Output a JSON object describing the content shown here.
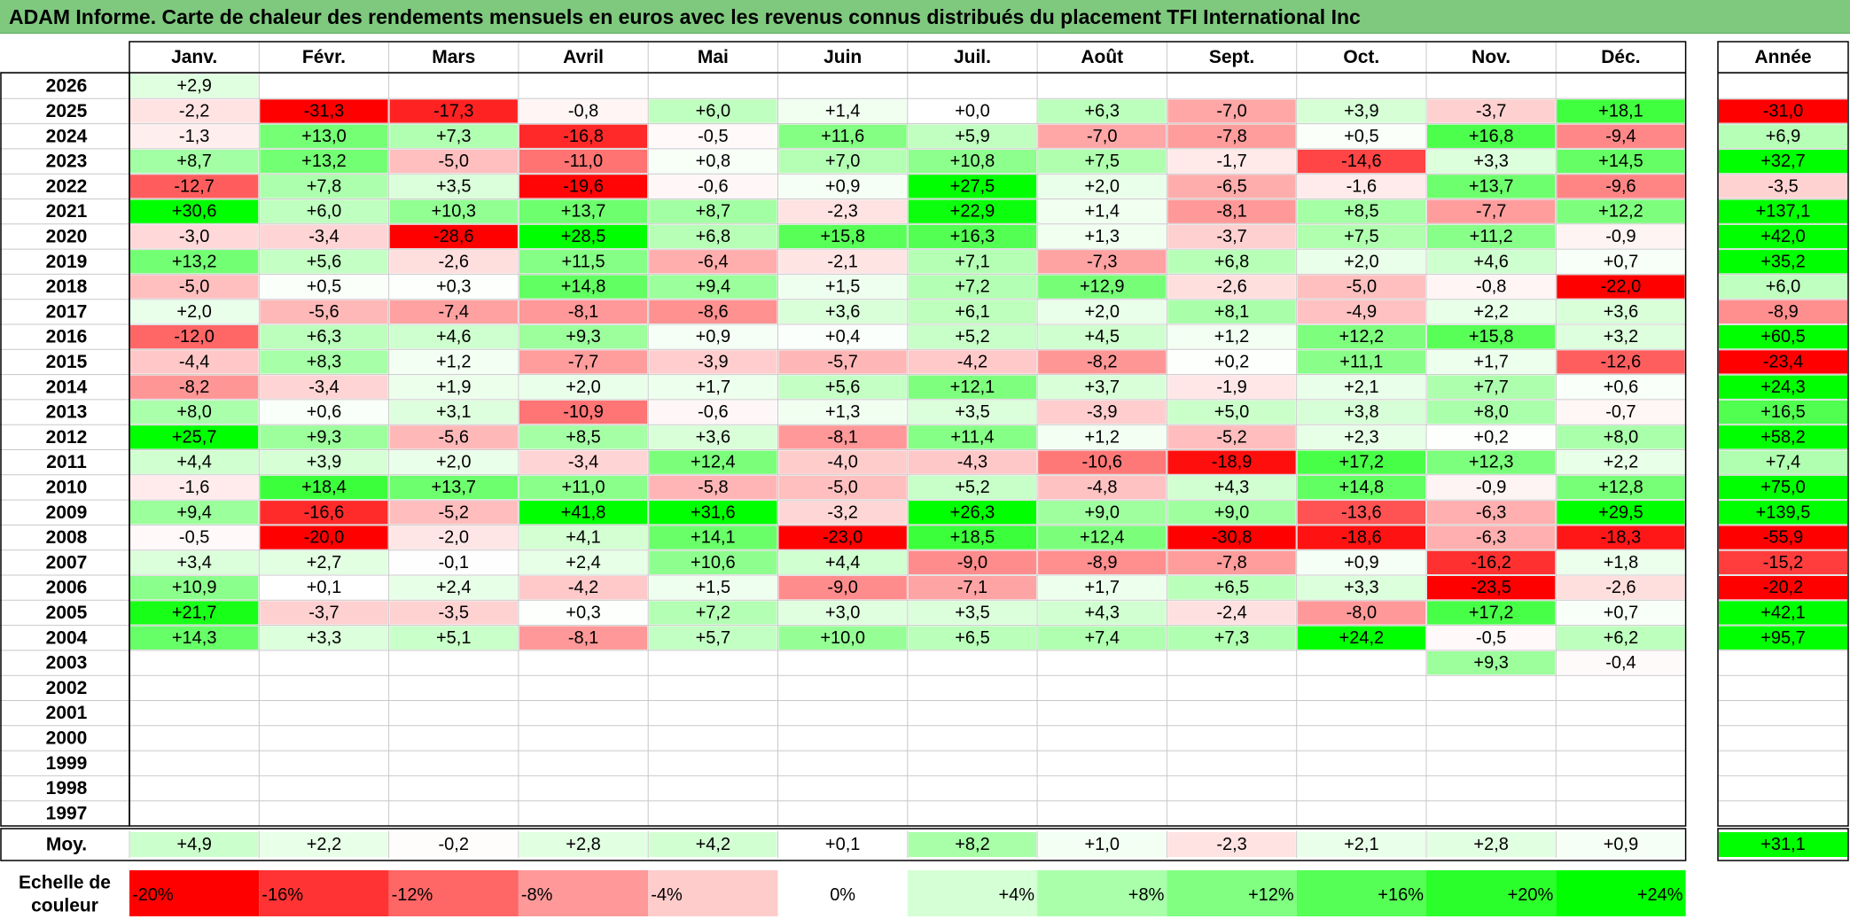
{
  "title": "ADAM Informe. Carte de chaleur des rendements mensuels en euros avec les revenus connus distribués du placement TFI International Inc",
  "chart_data": {
    "type": "heatmap",
    "months": [
      "Janv.",
      "Févr.",
      "Mars",
      "Avril",
      "Mai",
      "Juin",
      "Juil.",
      "Août",
      "Sept.",
      "Oct.",
      "Nov.",
      "Déc."
    ],
    "year_header": "Année",
    "rows": [
      {
        "year": "2026",
        "values": [
          2.9,
          null,
          null,
          null,
          null,
          null,
          null,
          null,
          null,
          null,
          null,
          null
        ],
        "annual": null
      },
      {
        "year": "2025",
        "values": [
          -2.2,
          -31.3,
          -17.3,
          -0.8,
          6.0,
          1.4,
          0.0,
          6.3,
          -7.0,
          3.9,
          -3.7,
          18.1
        ],
        "annual": -31.0
      },
      {
        "year": "2024",
        "values": [
          -1.3,
          13.0,
          7.3,
          -16.8,
          -0.5,
          11.6,
          5.9,
          -7.0,
          -7.8,
          0.5,
          16.8,
          -9.4
        ],
        "annual": 6.9
      },
      {
        "year": "2023",
        "values": [
          8.7,
          13.2,
          -5.0,
          -11.0,
          0.8,
          7.0,
          10.8,
          7.5,
          -1.7,
          -14.6,
          3.3,
          14.5
        ],
        "annual": 32.7
      },
      {
        "year": "2022",
        "values": [
          -12.7,
          7.8,
          3.5,
          -19.6,
          -0.6,
          0.9,
          27.5,
          2.0,
          -6.5,
          -1.6,
          13.7,
          -9.6
        ],
        "annual": -3.5
      },
      {
        "year": "2021",
        "values": [
          30.6,
          6.0,
          10.3,
          13.7,
          8.7,
          -2.3,
          22.9,
          1.4,
          -8.1,
          8.5,
          -7.7,
          12.2
        ],
        "annual": 137.1
      },
      {
        "year": "2020",
        "values": [
          -3.0,
          -3.4,
          -28.6,
          28.5,
          6.8,
          15.8,
          16.3,
          1.3,
          -3.7,
          7.5,
          11.2,
          -0.9
        ],
        "annual": 42.0
      },
      {
        "year": "2019",
        "values": [
          13.2,
          5.6,
          -2.6,
          11.5,
          -6.4,
          -2.1,
          7.1,
          -7.3,
          6.8,
          2.0,
          4.6,
          0.7
        ],
        "annual": 35.2
      },
      {
        "year": "2018",
        "values": [
          -5.0,
          0.5,
          0.3,
          14.8,
          9.4,
          1.5,
          7.2,
          12.9,
          -2.6,
          -5.0,
          -0.8,
          -22.0
        ],
        "annual": 6.0
      },
      {
        "year": "2017",
        "values": [
          2.0,
          -5.6,
          -7.4,
          -8.1,
          -8.6,
          3.6,
          6.1,
          2.0,
          8.1,
          -4.9,
          2.2,
          3.6
        ],
        "annual": -8.9
      },
      {
        "year": "2016",
        "values": [
          -12.0,
          6.3,
          4.6,
          9.3,
          0.9,
          0.4,
          5.2,
          4.5,
          1.2,
          12.2,
          15.8,
          3.2
        ],
        "annual": 60.5
      },
      {
        "year": "2015",
        "values": [
          -4.4,
          8.3,
          1.2,
          -7.7,
          -3.9,
          -5.7,
          -4.2,
          -8.2,
          0.2,
          11.1,
          1.7,
          -12.6
        ],
        "annual": -23.4
      },
      {
        "year": "2014",
        "values": [
          -8.2,
          -3.4,
          1.9,
          2.0,
          1.7,
          5.6,
          12.1,
          3.7,
          -1.9,
          2.1,
          7.7,
          0.6
        ],
        "annual": 24.3
      },
      {
        "year": "2013",
        "values": [
          8.0,
          0.6,
          3.1,
          -10.9,
          -0.6,
          1.3,
          3.5,
          -3.9,
          5.0,
          3.8,
          8.0,
          -0.7
        ],
        "annual": 16.5
      },
      {
        "year": "2012",
        "values": [
          25.7,
          9.3,
          -5.6,
          8.5,
          3.6,
          -8.1,
          11.4,
          1.2,
          -5.2,
          2.3,
          0.2,
          8.0
        ],
        "annual": 58.2
      },
      {
        "year": "2011",
        "values": [
          4.4,
          3.9,
          2.0,
          -3.4,
          12.4,
          -4.0,
          -4.3,
          -10.6,
          -18.9,
          17.2,
          12.3,
          2.2
        ],
        "annual": 7.4
      },
      {
        "year": "2010",
        "values": [
          -1.6,
          18.4,
          13.7,
          11.0,
          -5.8,
          -5.0,
          5.2,
          -4.8,
          4.3,
          14.8,
          -0.9,
          12.8
        ],
        "annual": 75.0
      },
      {
        "year": "2009",
        "values": [
          9.4,
          -16.6,
          -5.2,
          41.8,
          31.6,
          -3.2,
          26.3,
          9.0,
          9.0,
          -13.6,
          -6.3,
          29.5
        ],
        "annual": 139.5
      },
      {
        "year": "2008",
        "values": [
          -0.5,
          -20.0,
          -2.0,
          4.1,
          14.1,
          -23.0,
          18.5,
          12.4,
          -30.8,
          -18.6,
          -6.3,
          -18.3
        ],
        "annual": -55.9
      },
      {
        "year": "2007",
        "values": [
          3.4,
          2.7,
          -0.1,
          2.4,
          10.6,
          4.4,
          -9.0,
          -8.9,
          -7.8,
          0.9,
          -16.2,
          1.8
        ],
        "annual": -15.2
      },
      {
        "year": "2006",
        "values": [
          10.9,
          0.1,
          2.4,
          -4.2,
          1.5,
          -9.0,
          -7.1,
          1.7,
          6.5,
          3.3,
          -23.5,
          -2.6
        ],
        "annual": -20.2
      },
      {
        "year": "2005",
        "values": [
          21.7,
          -3.7,
          -3.5,
          0.3,
          7.2,
          3.0,
          3.5,
          4.3,
          -2.4,
          -8.0,
          17.2,
          0.7
        ],
        "annual": 42.1
      },
      {
        "year": "2004",
        "values": [
          14.3,
          3.3,
          5.1,
          -8.1,
          5.7,
          10.0,
          6.5,
          7.4,
          7.3,
          24.2,
          -0.5,
          6.2
        ],
        "annual": 95.7
      },
      {
        "year": "2003",
        "values": [
          null,
          null,
          null,
          null,
          null,
          null,
          null,
          null,
          null,
          null,
          9.3,
          -0.4
        ],
        "annual": null
      },
      {
        "year": "2002",
        "values": [
          null,
          null,
          null,
          null,
          null,
          null,
          null,
          null,
          null,
          null,
          null,
          null
        ],
        "annual": null
      },
      {
        "year": "2001",
        "values": [
          null,
          null,
          null,
          null,
          null,
          null,
          null,
          null,
          null,
          null,
          null,
          null
        ],
        "annual": null
      },
      {
        "year": "2000",
        "values": [
          null,
          null,
          null,
          null,
          null,
          null,
          null,
          null,
          null,
          null,
          null,
          null
        ],
        "annual": null
      },
      {
        "year": "1999",
        "values": [
          null,
          null,
          null,
          null,
          null,
          null,
          null,
          null,
          null,
          null,
          null,
          null
        ],
        "annual": null
      },
      {
        "year": "1998",
        "values": [
          null,
          null,
          null,
          null,
          null,
          null,
          null,
          null,
          null,
          null,
          null,
          null
        ],
        "annual": null
      },
      {
        "year": "1997",
        "values": [
          null,
          null,
          null,
          null,
          null,
          null,
          null,
          null,
          null,
          null,
          null,
          null
        ],
        "annual": null
      }
    ],
    "average": {
      "label": "Moy.",
      "values": [
        4.9,
        2.2,
        -0.2,
        2.8,
        4.2,
        0.1,
        8.2,
        1.0,
        -2.3,
        2.1,
        2.8,
        0.9
      ],
      "annual": 31.1
    },
    "scale": {
      "label_line1": "Echelle de",
      "label_line2": "couleur",
      "steps": [
        {
          "label": "-20%",
          "value": -20
        },
        {
          "label": "-16%",
          "value": -16
        },
        {
          "label": "-12%",
          "value": -12
        },
        {
          "label": "-8%",
          "value": -8
        },
        {
          "label": "-4%",
          "value": -4
        },
        {
          "label": "0%",
          "value": 0
        },
        {
          "label": "+4%",
          "value": 4
        },
        {
          "label": "+8%",
          "value": 8
        },
        {
          "label": "+12%",
          "value": 12
        },
        {
          "label": "+16%",
          "value": 16
        },
        {
          "label": "+20%",
          "value": 20
        },
        {
          "label": "+24%",
          "value": 24
        }
      ]
    },
    "colors": {
      "negative_max": "#ff0000",
      "neutral": "#ffffff",
      "positive_max": "#00ff00",
      "title_background": "#7fc97f",
      "grid": "#c8c8c8",
      "border": "#000000"
    }
  }
}
